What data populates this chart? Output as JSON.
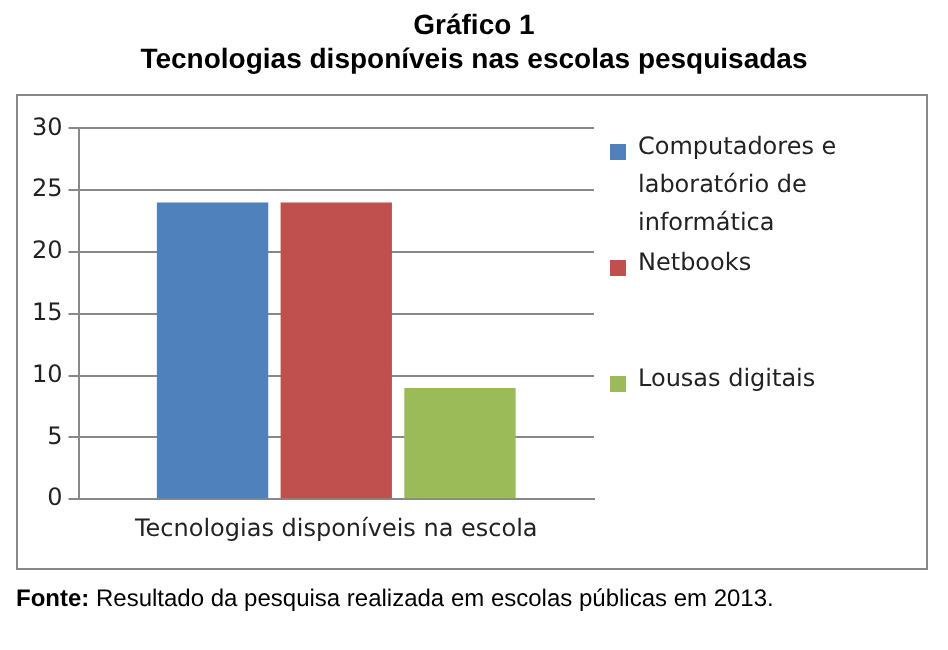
{
  "chart_data": {
    "type": "bar",
    "title": "Gráfico 1",
    "subtitle": "Tecnologias disponíveis nas escolas pesquisadas",
    "categories": [
      "Tecnologias disponíveis na escola"
    ],
    "series": [
      {
        "name": "Computadores e laboratório de informática",
        "color": "#4f81bd",
        "values": [
          24
        ]
      },
      {
        "name": "Netbooks",
        "color": "#c0504d",
        "values": [
          24
        ]
      },
      {
        "name": "Lousas digitais",
        "color": "#9bbb59",
        "values": [
          9
        ]
      }
    ],
    "ylim": [
      0,
      30
    ],
    "yticks": [
      0,
      5,
      10,
      15,
      20,
      25,
      30
    ],
    "grid": "y",
    "legend": "right",
    "annotations": [
      "Fonte: Resultado da pesquisa realizada em escolas públicas em 2013."
    ]
  }
}
